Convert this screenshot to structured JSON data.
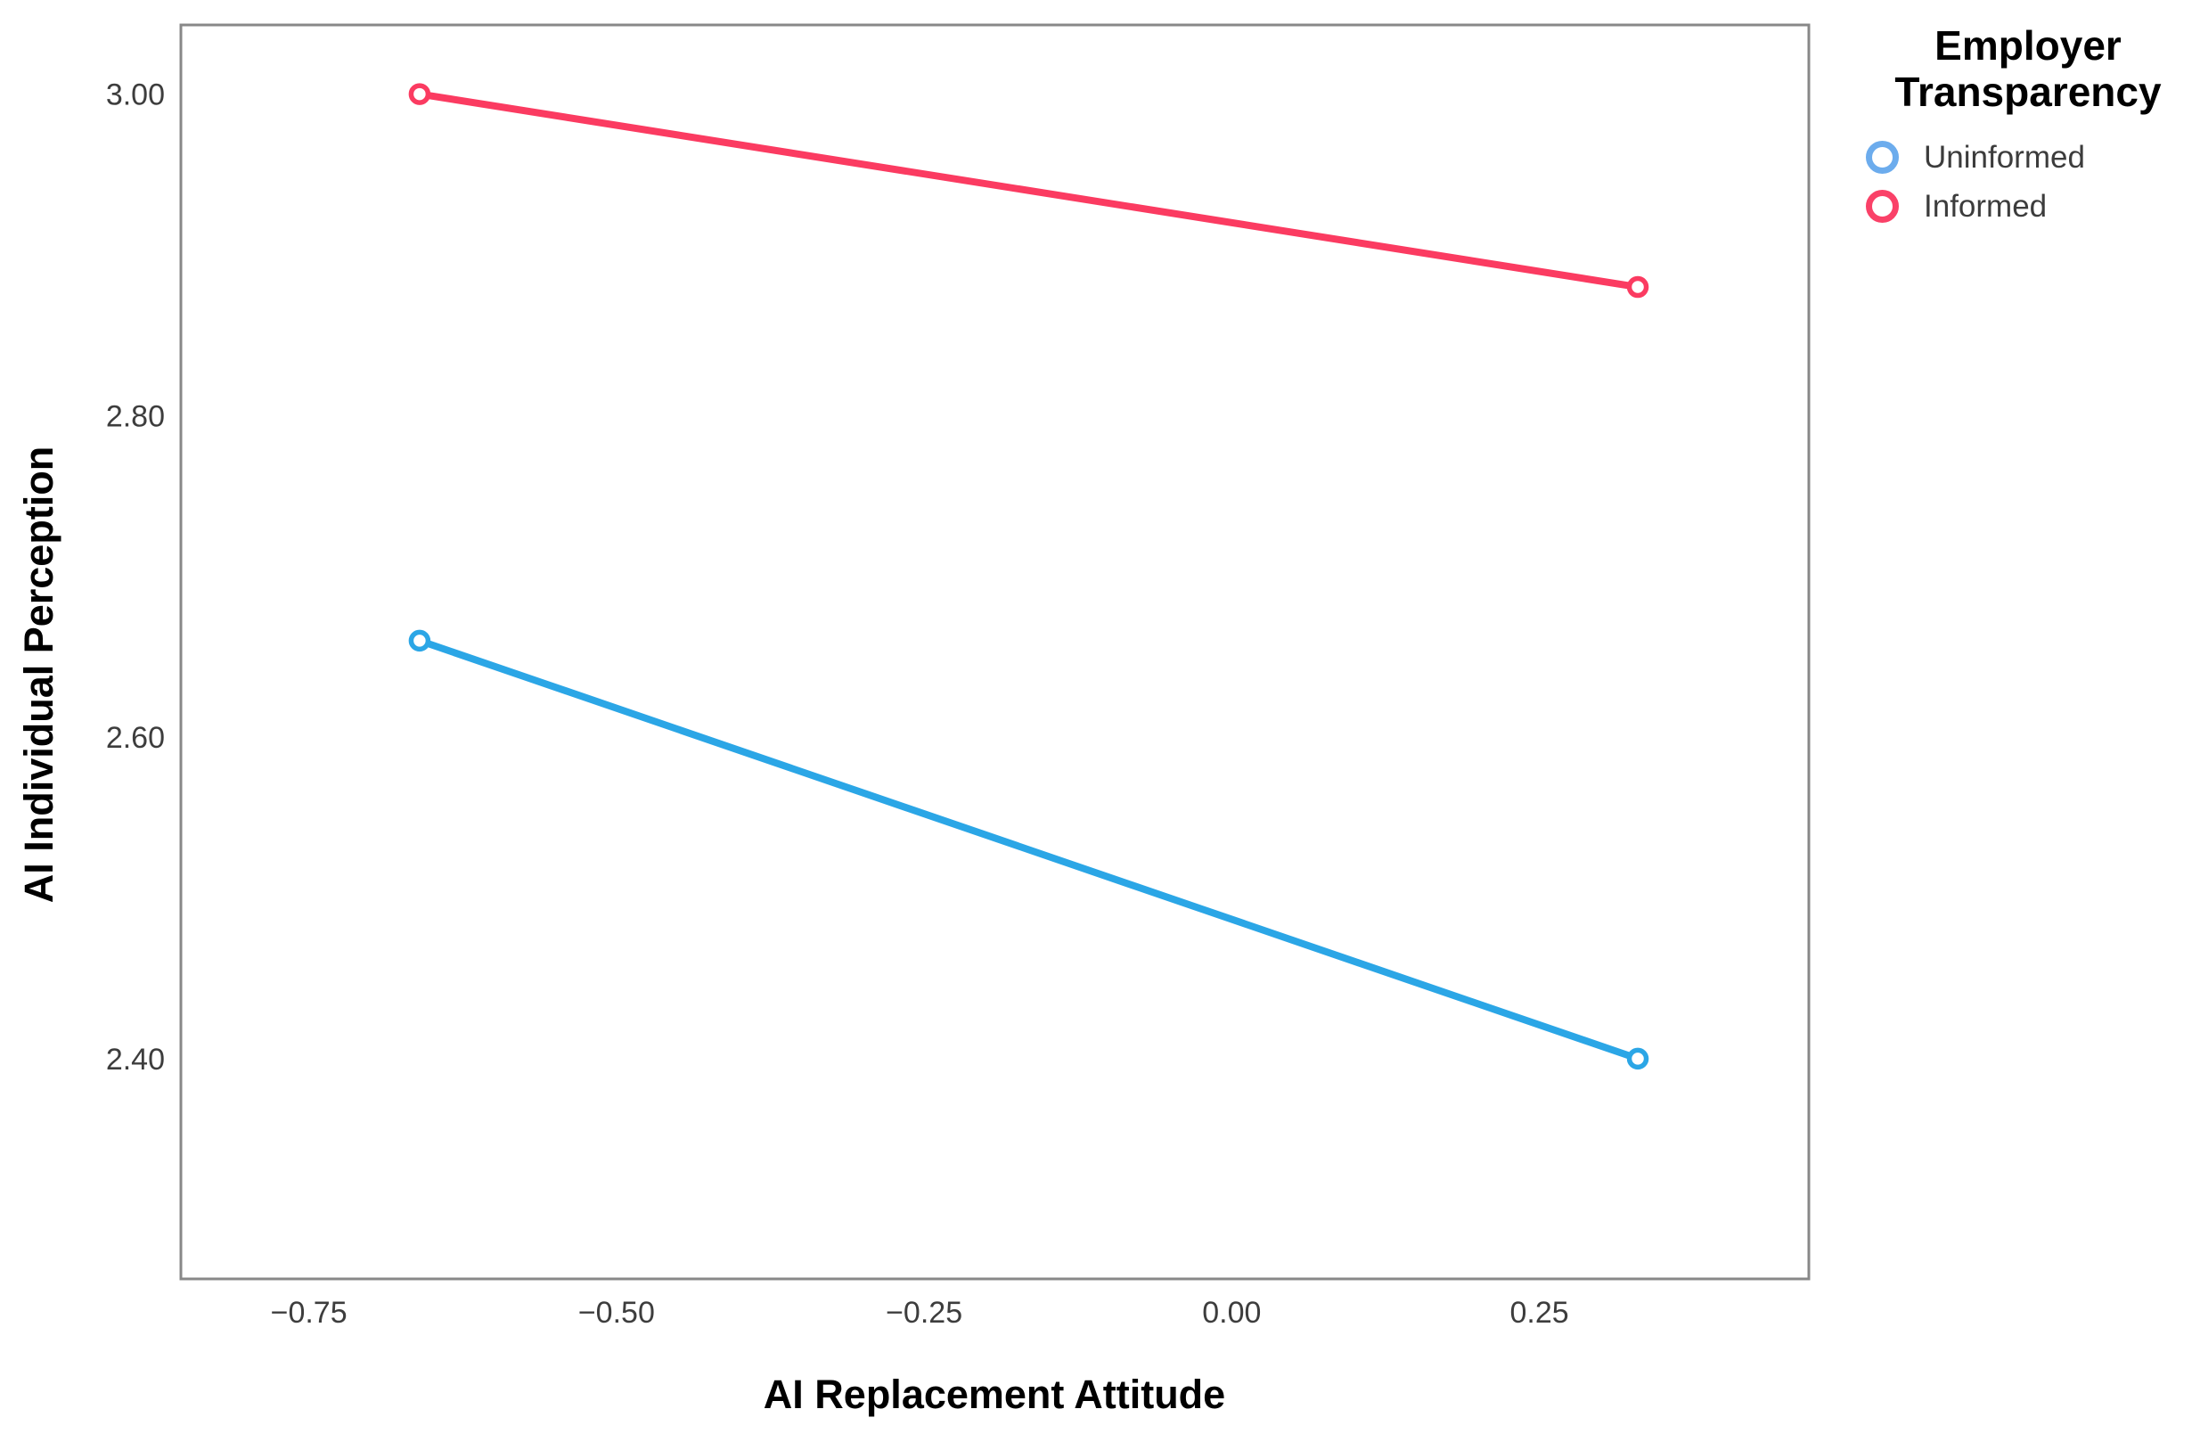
{
  "figure": {
    "background": "#ffffff",
    "frame_color": "#888888",
    "tick_label_color": "#3d3d3d",
    "axis_title_color": "#000000"
  },
  "chart_data": {
    "type": "line",
    "title": "",
    "xlabel": "AI Replacement Attitude",
    "ylabel": "AI Individual Perception",
    "legend_title": "Employer Transparency",
    "legend_position": "top-right-outside",
    "grid": false,
    "xlim": [
      -0.854,
      0.469
    ],
    "ylim": [
      2.263,
      3.043
    ],
    "x_ticks": [
      {
        "value": -0.75,
        "label": "−0.75"
      },
      {
        "value": -0.5,
        "label": "−0.50"
      },
      {
        "value": -0.25,
        "label": "−0.25"
      },
      {
        "value": 0.0,
        "label": "0.00"
      },
      {
        "value": 0.25,
        "label": "0.25"
      }
    ],
    "y_ticks": [
      {
        "value": 2.4,
        "label": "2.40"
      },
      {
        "value": 2.6,
        "label": "2.60"
      },
      {
        "value": 2.8,
        "label": "2.80"
      },
      {
        "value": 3.0,
        "label": "3.00"
      }
    ],
    "series": [
      {
        "name": "Uninformed",
        "line_color": "#2ba6e6",
        "legend_marker_color": "#6caced",
        "points": [
          {
            "x": -0.66,
            "y": 2.66
          },
          {
            "x": 0.33,
            "y": 2.4
          }
        ]
      },
      {
        "name": "Informed",
        "line_color": "#fb3b61",
        "legend_marker_color": "#fa4168",
        "points": [
          {
            "x": -0.66,
            "y": 3.0
          },
          {
            "x": 0.33,
            "y": 2.88
          }
        ]
      }
    ]
  }
}
